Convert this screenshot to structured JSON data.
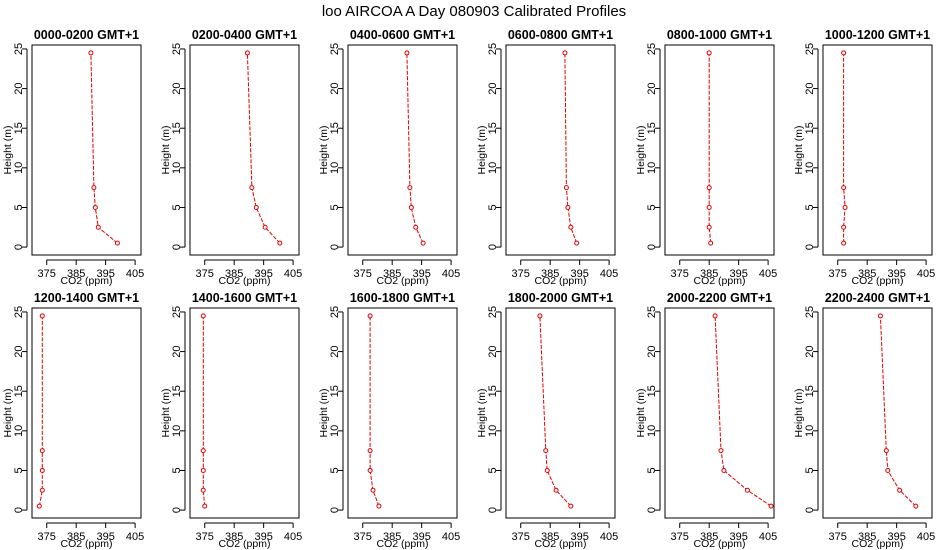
{
  "figure": {
    "title": "loo AIRCOA A  Day 080903  Calibrated Profiles",
    "colors": {
      "profile": "#e00000",
      "axes": "#000000"
    }
  },
  "chart_data": [
    {
      "type": "line",
      "title": "0000-0200 GMT+1",
      "xlabel": "CO2 (ppm)",
      "ylabel": "Height (m)",
      "xlim": [
        370,
        407
      ],
      "ylim": [
        -1,
        25.5
      ],
      "xticks": [
        375,
        385,
        395,
        405
      ],
      "yticks": [
        0,
        5,
        10,
        15,
        20,
        25
      ],
      "grid": false,
      "series": [
        {
          "x": [
            399.0,
            392.5,
            391.5,
            391.0,
            390.0
          ],
          "y": [
            0.5,
            2.5,
            5,
            7.5,
            24.5
          ]
        }
      ]
    },
    {
      "type": "line",
      "title": "0200-0400 GMT+1",
      "xlabel": "CO2 (ppm)",
      "ylabel": "Height (m)",
      "xlim": [
        370,
        407
      ],
      "ylim": [
        -1,
        25.5
      ],
      "xticks": [
        375,
        385,
        395,
        405
      ],
      "yticks": [
        0,
        5,
        10,
        15,
        20,
        25
      ],
      "grid": false,
      "series": [
        {
          "x": [
            400.5,
            395.5,
            392.5,
            391.0,
            389.5
          ],
          "y": [
            0.5,
            2.5,
            5,
            7.5,
            24.5
          ]
        }
      ]
    },
    {
      "type": "line",
      "title": "0400-0600 GMT+1",
      "xlabel": "CO2 (ppm)",
      "ylabel": "Height (m)",
      "xlim": [
        370,
        407
      ],
      "ylim": [
        -1,
        25.5
      ],
      "xticks": [
        375,
        385,
        395,
        405
      ],
      "yticks": [
        0,
        5,
        10,
        15,
        20,
        25
      ],
      "grid": false,
      "series": [
        {
          "x": [
            395.5,
            393.0,
            391.5,
            391.0,
            390.0
          ],
          "y": [
            0.5,
            2.5,
            5,
            7.5,
            24.5
          ]
        }
      ]
    },
    {
      "type": "line",
      "title": "0600-0800 GMT+1",
      "xlabel": "CO2 (ppm)",
      "ylabel": "Height (m)",
      "xlim": [
        370,
        407
      ],
      "ylim": [
        -1,
        25.5
      ],
      "xticks": [
        375,
        385,
        395,
        405
      ],
      "yticks": [
        0,
        5,
        10,
        15,
        20,
        25
      ],
      "grid": false,
      "series": [
        {
          "x": [
            394.0,
            392.0,
            391.0,
            390.5,
            390.0
          ],
          "y": [
            0.5,
            2.5,
            5,
            7.5,
            24.5
          ]
        }
      ]
    },
    {
      "type": "line",
      "title": "0800-1000 GMT+1",
      "xlabel": "CO2 (ppm)",
      "ylabel": "Height (m)",
      "xlim": [
        370,
        407
      ],
      "ylim": [
        -1,
        25.5
      ],
      "xticks": [
        375,
        385,
        395,
        405
      ],
      "yticks": [
        0,
        5,
        10,
        15,
        20,
        25
      ],
      "grid": false,
      "series": [
        {
          "x": [
            385.5,
            385.0,
            385.0,
            385.0,
            385.0
          ],
          "y": [
            0.5,
            2.5,
            5,
            7.5,
            24.5
          ]
        }
      ]
    },
    {
      "type": "line",
      "title": "1000-1200 GMT+1",
      "xlabel": "CO2 (ppm)",
      "ylabel": "Height (m)",
      "xlim": [
        370,
        407
      ],
      "ylim": [
        -1,
        25.5
      ],
      "xticks": [
        375,
        385,
        395,
        405
      ],
      "yticks": [
        0,
        5,
        10,
        15,
        20,
        25
      ],
      "grid": false,
      "series": [
        {
          "x": [
            377.0,
            377.0,
            377.5,
            377.0,
            377.0
          ],
          "y": [
            0.5,
            2.5,
            5,
            7.5,
            24.5
          ]
        }
      ]
    },
    {
      "type": "line",
      "title": "1200-1400 GMT+1",
      "xlabel": "CO2 (ppm)",
      "ylabel": "Height (m)",
      "xlim": [
        370,
        407
      ],
      "ylim": [
        -1,
        25.5
      ],
      "xticks": [
        375,
        385,
        395,
        405
      ],
      "yticks": [
        0,
        5,
        10,
        15,
        20,
        25
      ],
      "grid": false,
      "series": [
        {
          "x": [
            372.5,
            373.5,
            373.5,
            373.5,
            373.5
          ],
          "y": [
            0.5,
            2.5,
            5,
            7.5,
            24.5
          ]
        }
      ]
    },
    {
      "type": "line",
      "title": "1400-1600 GMT+1",
      "xlabel": "CO2 (ppm)",
      "ylabel": "Height (m)",
      "xlim": [
        370,
        407
      ],
      "ylim": [
        -1,
        25.5
      ],
      "xticks": [
        375,
        385,
        395,
        405
      ],
      "yticks": [
        0,
        5,
        10,
        15,
        20,
        25
      ],
      "grid": false,
      "series": [
        {
          "x": [
            375.0,
            374.5,
            374.5,
            374.5,
            374.5
          ],
          "y": [
            0.5,
            2.5,
            5,
            7.5,
            24.5
          ]
        }
      ]
    },
    {
      "type": "line",
      "title": "1600-1800 GMT+1",
      "xlabel": "CO2 (ppm)",
      "ylabel": "Height (m)",
      "xlim": [
        370,
        407
      ],
      "ylim": [
        -1,
        25.5
      ],
      "xticks": [
        375,
        385,
        395,
        405
      ],
      "yticks": [
        0,
        5,
        10,
        15,
        20,
        25
      ],
      "grid": false,
      "series": [
        {
          "x": [
            380.5,
            378.5,
            377.5,
            377.5,
            377.5
          ],
          "y": [
            0.5,
            2.5,
            5,
            7.5,
            24.5
          ]
        }
      ]
    },
    {
      "type": "line",
      "title": "1800-2000 GMT+1",
      "xlabel": "CO2 (ppm)",
      "ylabel": "Height (m)",
      "xlim": [
        370,
        407
      ],
      "ylim": [
        -1,
        25.5
      ],
      "xticks": [
        375,
        385,
        395,
        405
      ],
      "yticks": [
        0,
        5,
        10,
        15,
        20,
        25
      ],
      "grid": false,
      "series": [
        {
          "x": [
            392.0,
            387.0,
            384.0,
            383.5,
            381.5
          ],
          "y": [
            0.5,
            2.5,
            5,
            7.5,
            24.5
          ]
        }
      ]
    },
    {
      "type": "line",
      "title": "2000-2200 GMT+1",
      "xlabel": "CO2 (ppm)",
      "ylabel": "Height (m)",
      "xlim": [
        370,
        407
      ],
      "ylim": [
        -1,
        25.5
      ],
      "xticks": [
        375,
        385,
        395,
        405
      ],
      "yticks": [
        0,
        5,
        10,
        15,
        20,
        25
      ],
      "grid": false,
      "series": [
        {
          "x": [
            406.0,
            398.0,
            390.0,
            389.0,
            387.0
          ],
          "y": [
            0.5,
            2.5,
            5,
            7.5,
            24.5
          ]
        }
      ]
    },
    {
      "type": "line",
      "title": "2200-2400 GMT+1",
      "xlabel": "CO2 (ppm)",
      "ylabel": "Height (m)",
      "xlim": [
        370,
        407
      ],
      "ylim": [
        -1,
        25.5
      ],
      "xticks": [
        375,
        385,
        395,
        405
      ],
      "yticks": [
        0,
        5,
        10,
        15,
        20,
        25
      ],
      "grid": false,
      "series": [
        {
          "x": [
            401.5,
            396.0,
            392.0,
            391.5,
            389.5
          ],
          "y": [
            0.5,
            2.5,
            5,
            7.5,
            24.5
          ]
        }
      ]
    }
  ]
}
